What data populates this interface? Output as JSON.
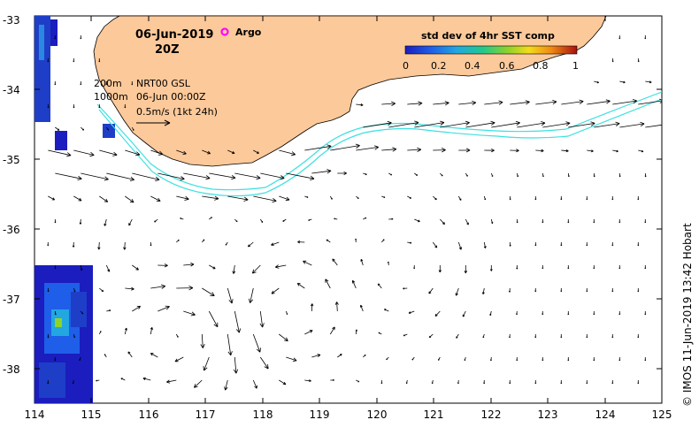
{
  "map": {
    "date": "06-Jun-2019",
    "hour": "20Z",
    "argo_label": "Argo",
    "colorbar": {
      "title": "std dev of 4hr SST comp",
      "ticks": [
        "0",
        "0.2",
        "0.4",
        "0.6",
        "0.8",
        "1"
      ]
    },
    "isobath_200": "200m",
    "isobath_1000": "1000m",
    "product": "NRT00 GSL",
    "timestamp": "06-Jun 00:00Z",
    "scale_label": "0.5m/s (1kt 24h)",
    "copyright": "© IMOS 11-Jun-2019 13:42 Hobart",
    "lon_ticks": [
      "114",
      "115",
      "116",
      "117",
      "118",
      "119",
      "120",
      "121",
      "122",
      "123",
      "124",
      "125"
    ],
    "lat_ticks": [
      "-33",
      "-34",
      "-35",
      "-36",
      "-37",
      "-38"
    ],
    "colors": {
      "land": "#fcc99a",
      "isobath": "#3ee0e0",
      "argo": "#ff00ff",
      "vector": "#000000"
    }
  }
}
